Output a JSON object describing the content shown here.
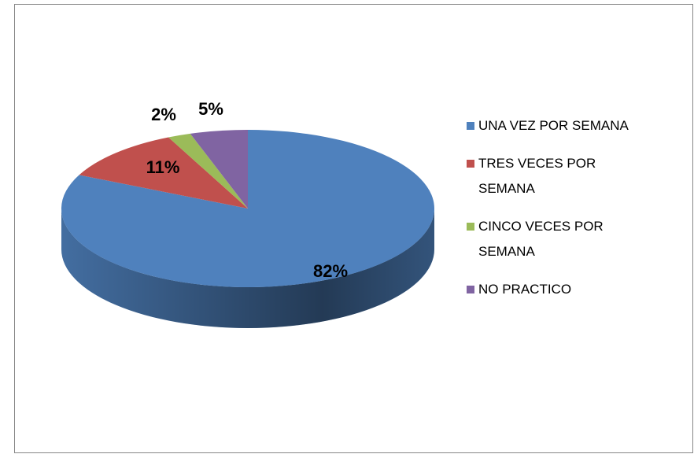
{
  "chart_data": {
    "type": "pie",
    "categories": [
      "UNA VEZ POR SEMANA",
      "TRES VECES POR SEMANA",
      "CINCO VECES POR SEMANA",
      "NO PRACTICO"
    ],
    "values": [
      82,
      11,
      2,
      5
    ],
    "value_labels": [
      "82%",
      "11%",
      "2%",
      "5%"
    ],
    "colors": [
      "#4f81bd",
      "#c0504d",
      "#9bbb59",
      "#8064a2"
    ],
    "legend": "right"
  }
}
